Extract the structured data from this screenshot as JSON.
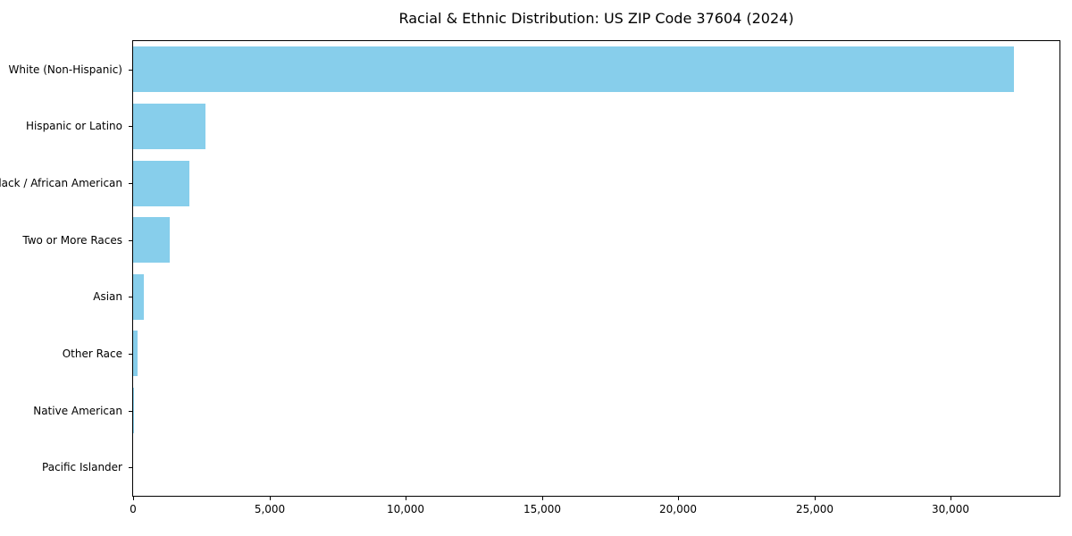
{
  "chart_data": {
    "type": "bar",
    "orientation": "horizontal",
    "title": "Racial & Ethnic Distribution: US ZIP Code 37604 (2024)",
    "categories": [
      "White (Non-Hispanic)",
      "Hispanic or Latino",
      "Black / African American",
      "Two or More Races",
      "Asian",
      "Other Race",
      "Native American",
      "Pacific Islander"
    ],
    "values": [
      32330,
      2650,
      2070,
      1340,
      390,
      165,
      30,
      10
    ],
    "bar_color": "#87CEEB",
    "frame_color": "#000000",
    "text_color": "#000000",
    "xlabel": "",
    "ylabel": "",
    "xlim": [
      0,
      34000
    ],
    "x_ticks": [
      0,
      5000,
      10000,
      15000,
      20000,
      25000,
      30000
    ],
    "x_tick_labels": [
      "0",
      "5,000",
      "10,000",
      "15,000",
      "20,000",
      "25,000",
      "30,000"
    ],
    "grid": false,
    "legend_position": "none"
  }
}
